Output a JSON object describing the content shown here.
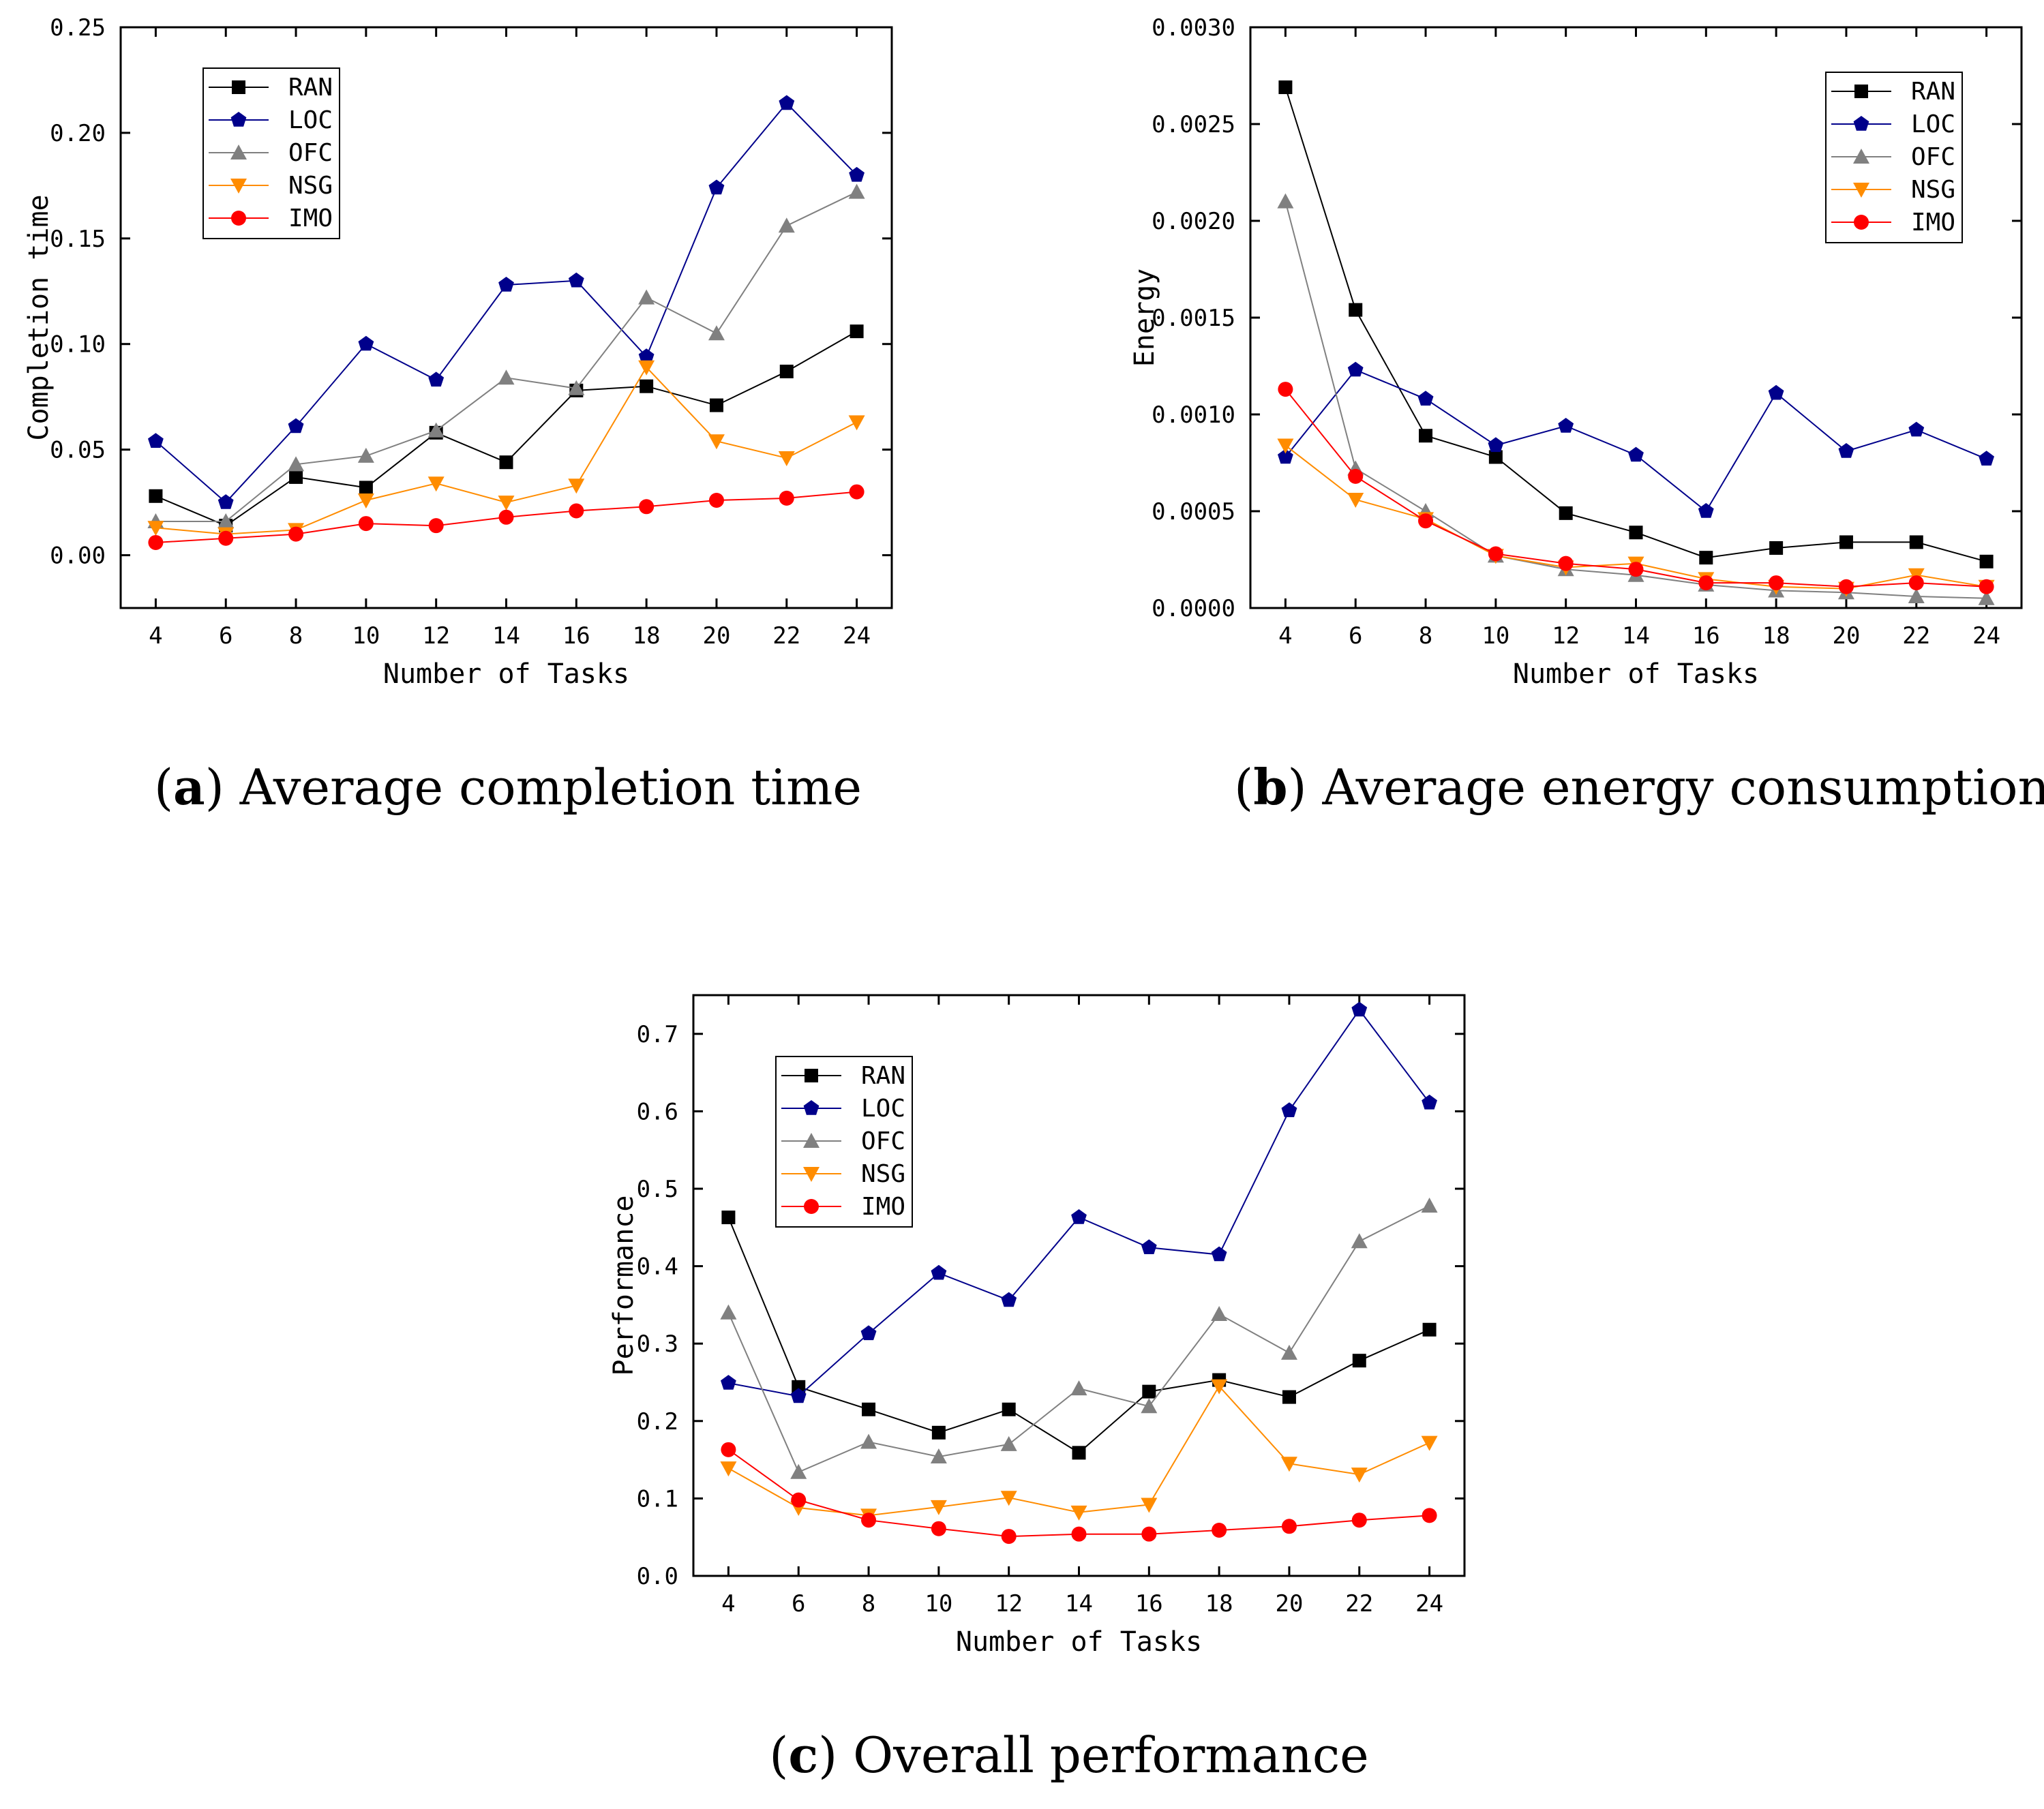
{
  "series_style": [
    {
      "name": "RAN",
      "color": "#000000",
      "marker": "square"
    },
    {
      "name": "LOC",
      "color": "#00008b",
      "marker": "pentagon"
    },
    {
      "name": "OFC",
      "color": "#808080",
      "marker": "triangle-up"
    },
    {
      "name": "NSG",
      "color": "#ff8c00",
      "marker": "triangle-down"
    },
    {
      "name": "IMO",
      "color": "#ff0000",
      "marker": "circle"
    }
  ],
  "chart_data": [
    {
      "id": "a",
      "type": "line",
      "caption_letter": "a",
      "caption_text": " Average completion time",
      "caption_left": "(",
      "caption_right": ")",
      "xlabel": "Number of Tasks",
      "ylabel": "Completion time",
      "x": [
        4,
        6,
        8,
        10,
        12,
        14,
        16,
        18,
        20,
        22,
        24
      ],
      "xlim": [
        3,
        25
      ],
      "ylim": [
        -0.025,
        0.25
      ],
      "yticks": [
        0.0,
        0.05,
        0.1,
        0.15,
        0.2,
        0.25
      ],
      "ytick_labels": [
        "0.00",
        "0.05",
        "0.10",
        "0.15",
        "0.20",
        "0.25"
      ],
      "legend_position": "top-left",
      "series": [
        {
          "name": "RAN",
          "values": [
            0.028,
            0.014,
            0.037,
            0.032,
            0.058,
            0.044,
            0.078,
            0.08,
            0.071,
            0.087,
            0.106
          ]
        },
        {
          "name": "LOC",
          "values": [
            0.054,
            0.025,
            0.061,
            0.1,
            0.083,
            0.128,
            0.13,
            0.094,
            0.174,
            0.214,
            0.18
          ]
        },
        {
          "name": "OFC",
          "values": [
            0.016,
            0.016,
            0.043,
            0.047,
            0.059,
            0.084,
            0.079,
            0.122,
            0.105,
            0.156,
            0.172
          ]
        },
        {
          "name": "NSG",
          "values": [
            0.013,
            0.01,
            0.012,
            0.026,
            0.034,
            0.025,
            0.033,
            0.089,
            0.054,
            0.046,
            0.063
          ]
        },
        {
          "name": "IMO",
          "values": [
            0.006,
            0.008,
            0.01,
            0.015,
            0.014,
            0.018,
            0.021,
            0.023,
            0.026,
            0.027,
            0.03
          ]
        }
      ]
    },
    {
      "id": "b",
      "type": "line",
      "caption_letter": "b",
      "caption_text": " Average energy consumption",
      "caption_left": "(",
      "caption_right": ")",
      "xlabel": "Number of Tasks",
      "ylabel": "Energy",
      "x": [
        4,
        6,
        8,
        10,
        12,
        14,
        16,
        18,
        20,
        22,
        24
      ],
      "xlim": [
        3,
        25
      ],
      "ylim": [
        0.0,
        0.003
      ],
      "yticks": [
        0.0,
        0.0005,
        0.001,
        0.0015,
        0.002,
        0.0025,
        0.003
      ],
      "ytick_labels": [
        "0.0000",
        "0.0005",
        "0.0010",
        "0.0015",
        "0.0020",
        "0.0025",
        "0.0030"
      ],
      "legend_position": "top-right",
      "series": [
        {
          "name": "RAN",
          "values": [
            0.00269,
            0.00154,
            0.00089,
            0.00078,
            0.00049,
            0.00039,
            0.00026,
            0.00031,
            0.00034,
            0.00034,
            0.00024
          ]
        },
        {
          "name": "LOC",
          "values": [
            0.00078,
            0.00123,
            0.00108,
            0.00084,
            0.00094,
            0.00079,
            0.0005,
            0.00111,
            0.00081,
            0.00092,
            0.00077
          ]
        },
        {
          "name": "OFC",
          "values": [
            0.0021,
            0.00072,
            0.0005,
            0.00027,
            0.0002,
            0.00017,
            0.00012,
            9e-05,
            8e-05,
            6e-05,
            5e-05
          ]
        },
        {
          "name": "NSG",
          "values": [
            0.00084,
            0.00056,
            0.00046,
            0.00027,
            0.00021,
            0.00023,
            0.00015,
            0.00011,
            0.0001,
            0.00017,
            0.00011
          ]
        },
        {
          "name": "IMO",
          "values": [
            0.00113,
            0.00068,
            0.00045,
            0.00028,
            0.00023,
            0.0002,
            0.00013,
            0.00013,
            0.00011,
            0.00013,
            0.00011
          ]
        }
      ]
    },
    {
      "id": "c",
      "type": "line",
      "caption_letter": "c",
      "caption_text": " Overall performance",
      "caption_left": "(",
      "caption_right": ")",
      "xlabel": "Number of Tasks",
      "ylabel": "Performance",
      "x": [
        4,
        6,
        8,
        10,
        12,
        14,
        16,
        18,
        20,
        22,
        24
      ],
      "xlim": [
        3,
        25
      ],
      "ylim": [
        0.0,
        0.75
      ],
      "yticks": [
        0.0,
        0.1,
        0.2,
        0.3,
        0.4,
        0.5,
        0.6,
        0.7
      ],
      "ytick_labels": [
        "0.0",
        "0.1",
        "0.2",
        "0.3",
        "0.4",
        "0.5",
        "0.6",
        "0.7"
      ],
      "legend_position": "top-left",
      "series": [
        {
          "name": "RAN",
          "values": [
            0.463,
            0.244,
            0.215,
            0.185,
            0.215,
            0.159,
            0.238,
            0.253,
            0.231,
            0.278,
            0.318
          ]
        },
        {
          "name": "LOC",
          "values": [
            0.249,
            0.232,
            0.313,
            0.391,
            0.356,
            0.463,
            0.424,
            0.415,
            0.601,
            0.731,
            0.611
          ]
        },
        {
          "name": "OFC",
          "values": [
            0.34,
            0.134,
            0.173,
            0.154,
            0.17,
            0.242,
            0.219,
            0.338,
            0.288,
            0.432,
            0.478
          ]
        },
        {
          "name": "NSG",
          "values": [
            0.139,
            0.088,
            0.078,
            0.089,
            0.101,
            0.082,
            0.092,
            0.245,
            0.145,
            0.131,
            0.172
          ]
        },
        {
          "name": "IMO",
          "values": [
            0.163,
            0.098,
            0.072,
            0.061,
            0.051,
            0.054,
            0.054,
            0.059,
            0.064,
            0.072,
            0.078
          ]
        }
      ]
    }
  ]
}
